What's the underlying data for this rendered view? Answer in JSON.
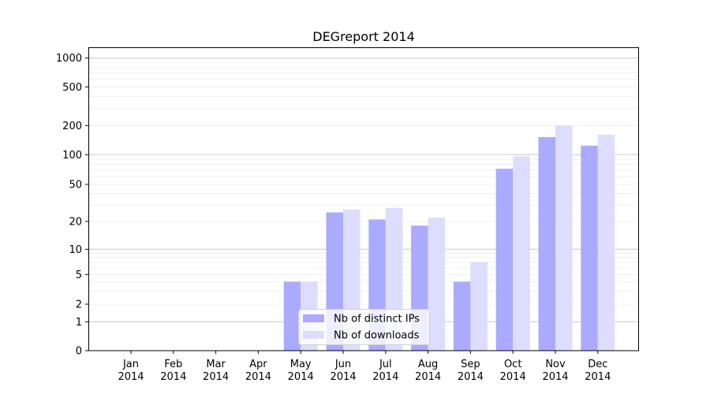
{
  "chart_data": {
    "type": "bar",
    "title": "DEGreport 2014",
    "xlabel": "",
    "ylabel": "",
    "yscale": "symlog",
    "ylim": [
      0,
      1300
    ],
    "yticks": [
      0,
      1,
      2,
      5,
      10,
      20,
      50,
      100,
      200,
      500,
      1000
    ],
    "grid": true,
    "legend_position": "lower center",
    "categories": [
      "Jan\n2014",
      "Feb\n2014",
      "Mar\n2014",
      "Apr\n2014",
      "May\n2014",
      "Jun\n2014",
      "Jul\n2014",
      "Aug\n2014",
      "Sep\n2014",
      "Oct\n2014",
      "Nov\n2014",
      "Dec\n2014"
    ],
    "series": [
      {
        "name": "Nb of distinct IPs",
        "color": "#aaaaff",
        "values": [
          0,
          0,
          0,
          0,
          4,
          25,
          21,
          18,
          4,
          72,
          152,
          124
        ]
      },
      {
        "name": "Nb of downloads",
        "color": "#ddddff",
        "values": [
          0,
          0,
          0,
          0,
          4,
          27,
          28,
          22,
          7,
          96,
          200,
          161
        ]
      }
    ]
  }
}
